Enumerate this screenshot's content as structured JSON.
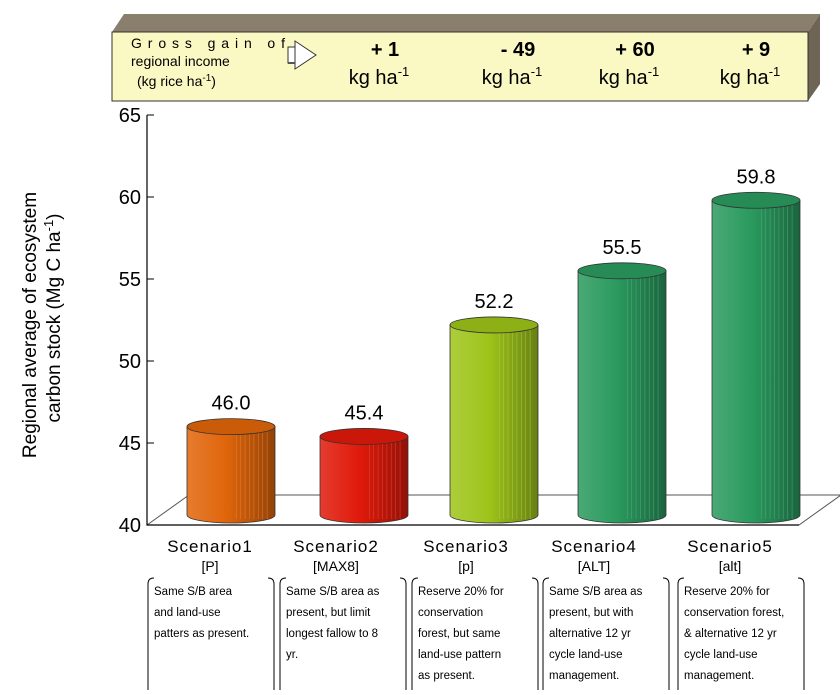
{
  "income_banner": {
    "label_line1": "Gross gain of",
    "label_line2": "regional income",
    "label_line3_pre": "(kg rice ha",
    "label_line3_sup": "-1",
    "label_line3_post": ")",
    "unit_main": "kg ha",
    "unit_sup": "-1",
    "gains": [
      "+ 1",
      "- 49",
      "+ 60",
      "+ 9"
    ]
  },
  "chart_data": {
    "type": "bar",
    "ylabel_line1": "Regional average of ecosystem",
    "ylabel_line2_pre": "carbon stock (Mg C ha",
    "ylabel_line2_sup": "-1",
    "ylabel_line2_post": ")",
    "ylim": [
      40,
      65
    ],
    "yticks": [
      "40",
      "45",
      "50",
      "55",
      "60",
      "65"
    ],
    "categories": [
      "Scenario1",
      "Scenario2",
      "Scenario3",
      "Scenario4",
      "Scenario5"
    ],
    "codes": [
      "[P]",
      "[MAX8]",
      "[p]",
      "[ALT]",
      "[alt]"
    ],
    "values": [
      46.0,
      45.4,
      52.2,
      55.5,
      59.8
    ],
    "value_labels": [
      "46.0",
      "45.4",
      "52.2",
      "55.5",
      "59.8"
    ],
    "colors": [
      "#e0650a",
      "#e01a0a",
      "#9ec41a",
      "#2a9a5e",
      "#2a9a5e"
    ],
    "descriptions": [
      [
        "Same S/B area",
        "and land-use",
        "patters as present."
      ],
      [
        "Same S/B area as",
        "present, but limit",
        "longest fallow to 8",
        "yr."
      ],
      [
        "Reserve 20% for",
        "conservation",
        "forest, but same",
        "land-use pattern",
        "as present."
      ],
      [
        "Same S/B area as",
        "present, but with",
        "alternative 12 yr",
        "cycle land-use",
        "management."
      ],
      [
        "Reserve 20% for",
        "conservation forest,",
        "& alternative 12 yr",
        "cycle land-use",
        "management."
      ]
    ]
  }
}
